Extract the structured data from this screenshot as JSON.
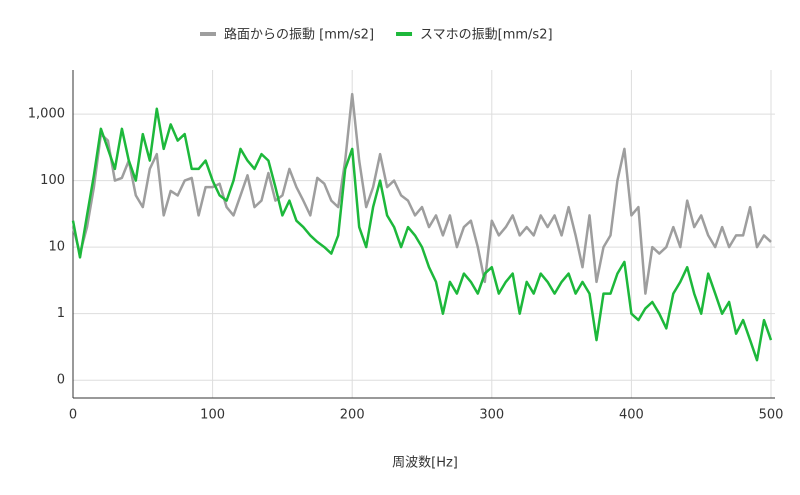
{
  "chart_data": {
    "type": "line",
    "x_label": "周波数[Hz]",
    "x": [
      0,
      5,
      10,
      15,
      20,
      25,
      30,
      35,
      40,
      45,
      50,
      55,
      60,
      65,
      70,
      75,
      80,
      85,
      90,
      95,
      100,
      105,
      110,
      115,
      120,
      125,
      130,
      135,
      140,
      145,
      150,
      155,
      160,
      165,
      170,
      175,
      180,
      185,
      190,
      195,
      200,
      205,
      210,
      215,
      220,
      225,
      230,
      235,
      240,
      245,
      250,
      255,
      260,
      265,
      270,
      275,
      280,
      285,
      290,
      295,
      300,
      305,
      310,
      315,
      320,
      325,
      330,
      335,
      340,
      345,
      350,
      355,
      360,
      365,
      370,
      375,
      380,
      385,
      390,
      395,
      400,
      405,
      410,
      415,
      420,
      425,
      430,
      435,
      440,
      445,
      450,
      455,
      460,
      465,
      470,
      475,
      480,
      485,
      490,
      495,
      500
    ],
    "series": [
      {
        "name": "路面からの振動 [mm/s2]",
        "color": "#9e9e9e",
        "values": [
          20,
          8,
          20,
          80,
          500,
          400,
          100,
          110,
          200,
          60,
          40,
          150,
          250,
          30,
          70,
          60,
          100,
          110,
          30,
          80,
          80,
          90,
          40,
          30,
          60,
          120,
          40,
          50,
          130,
          50,
          60,
          150,
          80,
          50,
          30,
          110,
          90,
          50,
          40,
          200,
          2000,
          200,
          40,
          80,
          250,
          80,
          100,
          60,
          50,
          30,
          40,
          20,
          30,
          15,
          30,
          10,
          20,
          25,
          10,
          3,
          25,
          15,
          20,
          30,
          15,
          20,
          15,
          30,
          20,
          30,
          15,
          40,
          15,
          5,
          30,
          3,
          10,
          15,
          100,
          300,
          30,
          40,
          2,
          10,
          8,
          10,
          20,
          10,
          50,
          20,
          30,
          15,
          10,
          20,
          10,
          15,
          15,
          40,
          10,
          15,
          12
        ]
      },
      {
        "name": "スマホの振動[mm/s2]",
        "color": "#1db83b",
        "values": [
          25,
          7,
          30,
          120,
          600,
          300,
          150,
          600,
          200,
          100,
          500,
          200,
          1200,
          300,
          700,
          400,
          500,
          150,
          150,
          200,
          100,
          60,
          50,
          100,
          300,
          200,
          150,
          250,
          200,
          80,
          30,
          50,
          25,
          20,
          15,
          12,
          10,
          8,
          15,
          150,
          300,
          20,
          10,
          40,
          100,
          30,
          20,
          10,
          20,
          15,
          10,
          5,
          3,
          1,
          3,
          2,
          4,
          3,
          2,
          4,
          5,
          2,
          3,
          4,
          1,
          3,
          2,
          4,
          3,
          2,
          3,
          4,
          2,
          3,
          2,
          0.4,
          2,
          2,
          4,
          6,
          1,
          0.8,
          1.2,
          1.5,
          1,
          0.6,
          2,
          3,
          5,
          2,
          1,
          4,
          2,
          1,
          1.5,
          0.5,
          0.8,
          0.4,
          0.2,
          0.8,
          0.4
        ]
      }
    ],
    "xlim": [
      0,
      500
    ],
    "xticks": [
      0,
      100,
      200,
      300,
      400,
      500
    ],
    "ylim": [
      0.054,
      4600
    ],
    "log_scale": true,
    "yticks": [
      {
        "value": 0.1,
        "label": "0"
      },
      1,
      10,
      100,
      {
        "value": 1000,
        "label": "1,000"
      }
    ],
    "grid": true,
    "legend": "top"
  }
}
